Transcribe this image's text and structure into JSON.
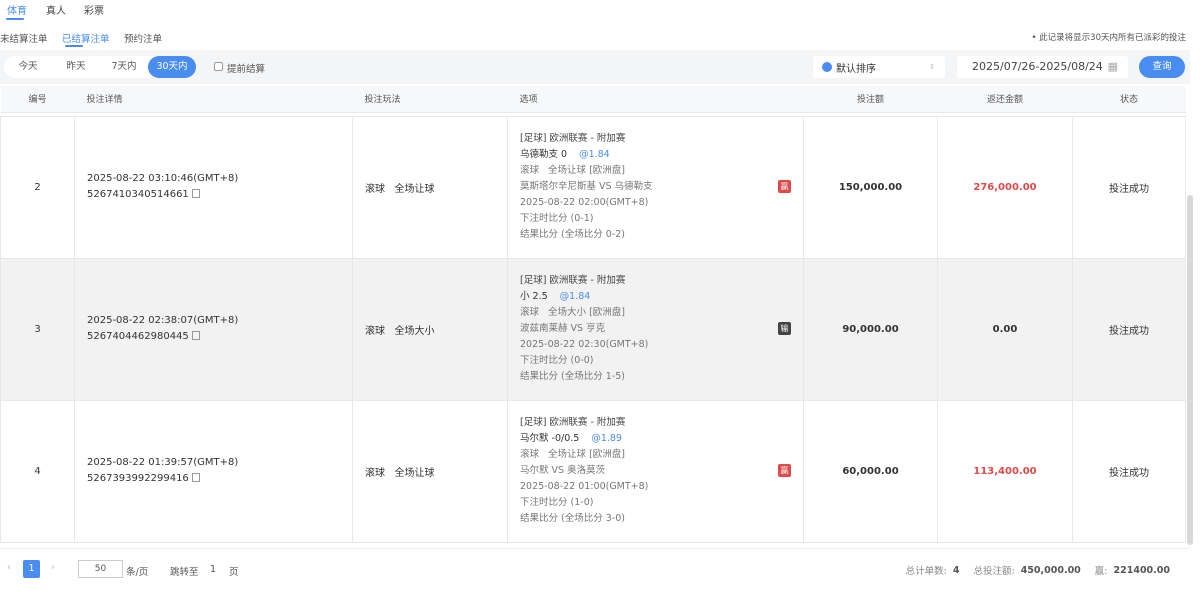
{
  "top_tabs": [
    "体育",
    "真人",
    "彩票"
  ],
  "sub_tabs": [
    "未结算注单",
    "已结算注单",
    "预约注单"
  ],
  "notice": "• 此记录将显示30天内所有已派彩的投注",
  "ranges": [
    "今天",
    "昨天",
    "7天内",
    "30天内"
  ],
  "early_settle": "提前结算",
  "sort": "默认排序",
  "date_range": "2025/07/26-2025/08/24",
  "query": "查询",
  "headers": [
    "编号",
    "投注详情",
    "投注玩法",
    "选项",
    "投注额",
    "返还金额",
    "状态"
  ],
  "rows": [
    {
      "id": "2",
      "time": "2025-08-22 03:10:46(GMT+8)",
      "order": "5267410340514661",
      "play": "滚球   全场让球",
      "league": "[足球] 欧洲联赛 - 附加赛",
      "pick": "乌德勒支 0",
      "odds": "@1.84",
      "market": "滚球   全场让球 [欧洲盘]",
      "match": "莫斯塔尔辛尼斯基 VS 乌德勒支",
      "kickoff": "2025-08-22 02:00(GMT+8)",
      "bet_score": "下注时比分 (0-1)",
      "result": "结果比分 (全场比分 0-2)",
      "outcome": "赢",
      "stake": "150,000.00",
      "return": "276,000.00",
      "status": "投注成功"
    },
    {
      "id": "3",
      "time": "2025-08-22 02:38:07(GMT+8)",
      "order": "5267404462980445",
      "play": "滚球   全场大小",
      "league": "[足球] 欧洲联赛 - 附加赛",
      "pick": "小 2.5",
      "odds": "@1.84",
      "market": "滚球   全场大小 [欧洲盘]",
      "match": "波兹南莱赫 VS 亨克",
      "kickoff": "2025-08-22 02:30(GMT+8)",
      "bet_score": "下注时比分 (0-0)",
      "result": "结果比分 (全场比分 1-5)",
      "outcome": "输",
      "stake": "90,000.00",
      "return": "0.00",
      "status": "投注成功"
    },
    {
      "id": "4",
      "time": "2025-08-22 01:39:57(GMT+8)",
      "order": "5267393992299416",
      "play": "滚球   全场让球",
      "league": "[足球] 欧洲联赛 - 附加赛",
      "pick": "马尔默 -0/0.5",
      "odds": "@1.89",
      "market": "滚球   全场让球 [欧洲盘]",
      "match": "马尔默 VS 奥洛莫茨",
      "kickoff": "2025-08-22 01:00(GMT+8)",
      "bet_score": "下注时比分 (1-0)",
      "result": "结果比分 (全场比分 3-0)",
      "outcome": "赢",
      "stake": "60,000.00",
      "return": "113,400.00",
      "status": "投注成功"
    }
  ],
  "pager": {
    "page": "1",
    "size": "50",
    "per_page": "条/页",
    "jump": "跳转至",
    "jump_page": "1",
    "page_unit": "页"
  },
  "summary": {
    "count_label": "总计单数:",
    "count": "4",
    "stake_label": "总投注额:",
    "stake": "450,000.00",
    "win_label": "赢:",
    "win": "221400.00"
  },
  "colors": {
    "accent": "#4a8df0",
    "win": "#e04a4a"
  }
}
